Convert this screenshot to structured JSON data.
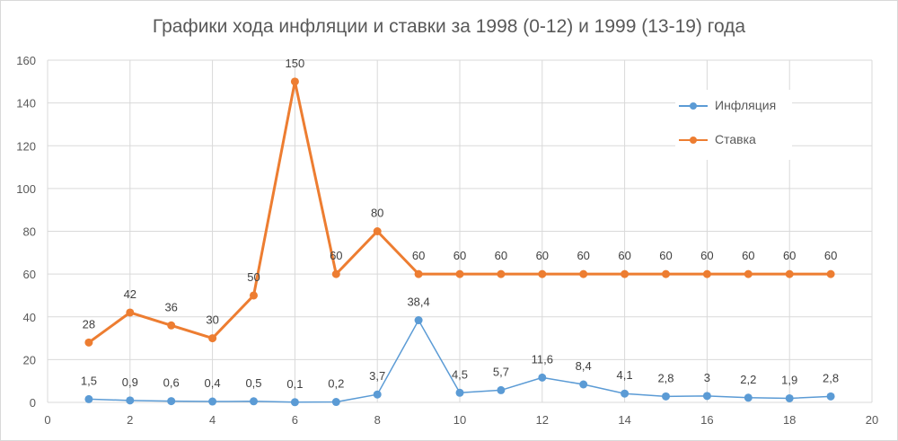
{
  "chart_data": {
    "type": "line",
    "title": "Графики хода инфляции и ставки за 1998 (0-12) и 1999 (13-19) года",
    "xlim": [
      0,
      20
    ],
    "ylim": [
      0,
      160
    ],
    "x_ticks": [
      "0",
      "2",
      "4",
      "6",
      "8",
      "10",
      "12",
      "14",
      "16",
      "18",
      "20"
    ],
    "y_ticks": [
      "0",
      "20",
      "40",
      "60",
      "80",
      "100",
      "120",
      "140",
      "160"
    ],
    "grid": true,
    "legend_position": "right",
    "x": [
      1,
      2,
      3,
      4,
      5,
      6,
      7,
      8,
      9,
      10,
      11,
      12,
      13,
      14,
      15,
      16,
      17,
      18,
      19
    ],
    "series": [
      {
        "name": "Инфляция",
        "color": "#5b9bd5",
        "values": [
          1.5,
          0.9,
          0.6,
          0.4,
          0.5,
          0.1,
          0.2,
          3.7,
          38.4,
          4.5,
          5.7,
          11.6,
          8.4,
          4.1,
          2.8,
          3,
          2.2,
          1.9,
          2.8
        ],
        "labels": [
          "1,5",
          "0,9",
          "0,6",
          "0,4",
          "0,5",
          "0,1",
          "0,2",
          "3,7",
          "38,4",
          "4,5",
          "5,7",
          "11,6",
          "8,4",
          "4,1",
          "2,8",
          "3",
          "2,2",
          "1,9",
          "2,8"
        ]
      },
      {
        "name": "Ставка",
        "color": "#ed7d31",
        "values": [
          28,
          42,
          36,
          30,
          50,
          150,
          60,
          80,
          60,
          60,
          60,
          60,
          60,
          60,
          60,
          60,
          60,
          60,
          60
        ],
        "labels": [
          "28",
          "42",
          "36",
          "30",
          "50",
          "150",
          "60",
          "80",
          "60",
          "60",
          "60",
          "60",
          "60",
          "60",
          "60",
          "60",
          "60",
          "60",
          "60"
        ]
      }
    ]
  }
}
